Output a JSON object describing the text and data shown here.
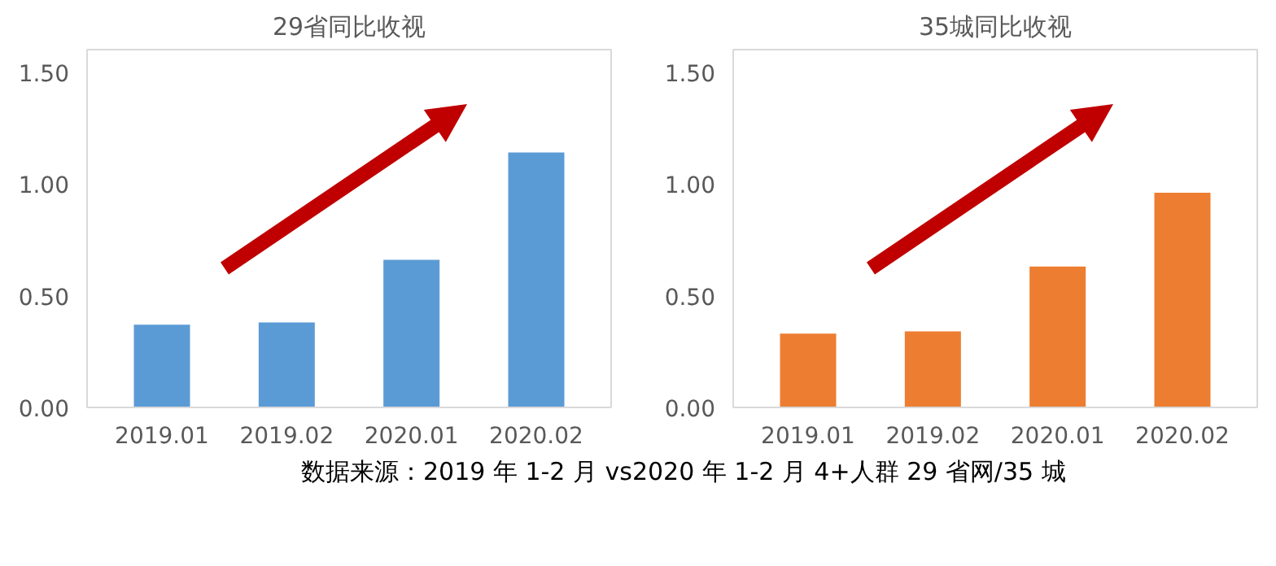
{
  "chart_data": [
    {
      "type": "bar",
      "title": "29省同比收视",
      "categories": [
        "2019.01",
        "2019.02",
        "2020.01",
        "2020.02"
      ],
      "values": [
        0.37,
        0.38,
        0.66,
        1.14
      ],
      "color": "#5b9bd5",
      "ylim": [
        0,
        1.6
      ],
      "yticks": [
        {
          "value": 0,
          "label": "0.00"
        },
        {
          "value": 0.5,
          "label": "0.50"
        },
        {
          "value": 1,
          "label": "1.00"
        },
        {
          "value": 1.5,
          "label": "1.50"
        }
      ],
      "grid": false
    },
    {
      "type": "bar",
      "title": "35城同比收视",
      "categories": [
        "2019.01",
        "2019.02",
        "2020.01",
        "2020.02"
      ],
      "values": [
        0.33,
        0.34,
        0.63,
        0.96
      ],
      "color": "#ed7d31",
      "ylim": [
        0,
        1.6
      ],
      "yticks": [
        {
          "value": 0,
          "label": "0.00"
        },
        {
          "value": 0.5,
          "label": "0.50"
        },
        {
          "value": 1,
          "label": "1.00"
        },
        {
          "value": 1.5,
          "label": "1.50"
        }
      ],
      "grid": false,
      "annotations": [
        "数据来源：2019 年 1-2 月 vs2020 年 1-2 月 4+人群 29 省网/35 城"
      ]
    }
  ]
}
